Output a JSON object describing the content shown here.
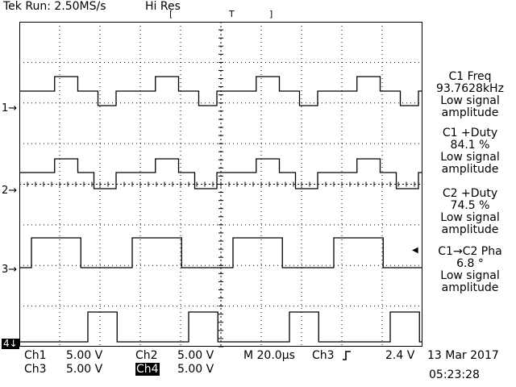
{
  "header": {
    "status": "Tek Run: 2.50MS/s",
    "acq_mode": "Hi Res",
    "trigger_bracket_left": "[",
    "trigger_marker": "T",
    "trigger_bracket_right": "]"
  },
  "channel_markers": {
    "ch1": "1→",
    "ch2": "2→",
    "ch3": "3→",
    "ch4": "4↓",
    "trigger_level_marker": "◀"
  },
  "measurements": [
    {
      "line1": "C1 Freq",
      "line2": "93.7628kHz",
      "line3": "Low signal",
      "line4": "amplitude"
    },
    {
      "line1": "C1 +Duty",
      "line2": "84.1 %",
      "line3": "Low signal",
      "line4": "amplitude"
    },
    {
      "line1": "C2 +Duty",
      "line2": "74.5 %",
      "line3": "Low signal",
      "line4": "amplitude"
    },
    {
      "line1": "C1→C2 Pha",
      "line2": "6.8 °",
      "line3": "Low signal",
      "line4": "amplitude"
    }
  ],
  "footer": {
    "ch1_label": "Ch1",
    "ch1_scale": "5.00 V",
    "ch2_label": "Ch2",
    "ch2_scale": "5.00 V",
    "ch3_label": "Ch3",
    "ch3_scale": "5.00 V",
    "ch4_label": "Ch4",
    "ch4_scale": "5.00 V",
    "timebase": "M 20.0µs",
    "trigger_source": "Ch3",
    "trigger_slope_icon": "rising-edge-icon",
    "trigger_level": "2.4 V",
    "date": "13 Mar 2017",
    "time": "05:23:28"
  },
  "display": {
    "grid": true,
    "divisions_x": 10,
    "divisions_y": 8,
    "trace_color": "#000000",
    "background_color": "#ffffff"
  }
}
